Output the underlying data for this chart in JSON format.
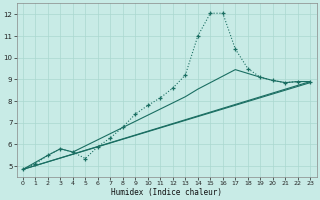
{
  "xlabel": "Humidex (Indice chaleur)",
  "bg_color": "#c8ebe6",
  "line_color": "#1a6e62",
  "grid_color": "#aad8d0",
  "xlim": [
    -0.5,
    23.5
  ],
  "ylim": [
    4.5,
    12.5
  ],
  "xticks": [
    0,
    1,
    2,
    3,
    4,
    5,
    6,
    7,
    8,
    9,
    10,
    11,
    12,
    13,
    14,
    15,
    16,
    17,
    18,
    19,
    20,
    21,
    22,
    23
  ],
  "yticks": [
    5,
    6,
    7,
    8,
    9,
    10,
    11,
    12
  ],
  "line1_x": [
    0,
    1,
    2,
    3,
    4,
    5,
    6,
    7,
    8,
    9,
    10,
    11,
    12,
    13,
    14,
    15,
    16,
    17,
    18,
    19,
    20,
    21,
    22,
    23
  ],
  "line1_y": [
    4.85,
    5.1,
    5.5,
    5.8,
    5.65,
    5.35,
    5.9,
    6.3,
    6.8,
    7.4,
    7.8,
    8.15,
    8.6,
    9.2,
    11.0,
    12.05,
    12.05,
    10.4,
    9.5,
    9.1,
    8.95,
    8.85,
    8.9,
    8.9
  ],
  "line2_x": [
    0,
    2,
    3,
    4,
    7,
    10,
    13,
    14,
    17,
    19,
    20,
    21,
    22,
    23
  ],
  "line2_y": [
    4.85,
    5.5,
    5.8,
    5.65,
    6.5,
    7.35,
    8.2,
    8.55,
    9.45,
    9.1,
    8.95,
    8.85,
    8.9,
    8.9
  ],
  "line3_x": [
    0,
    23
  ],
  "line3_y": [
    4.85,
    8.9
  ],
  "line4_x": [
    0,
    23
  ],
  "line4_y": [
    4.85,
    8.85
  ]
}
